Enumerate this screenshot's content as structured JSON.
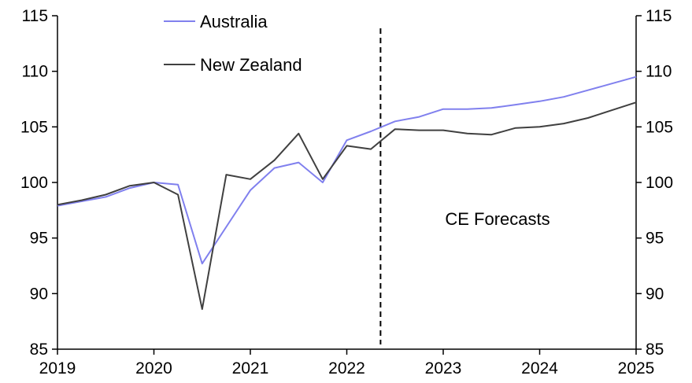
{
  "chart_data": {
    "type": "line",
    "x_start": 2019,
    "x_end": 2025,
    "x_ticks": [
      "2019",
      "2020",
      "2021",
      "2022",
      "2023",
      "2024",
      "2025"
    ],
    "y_left_ticks": [
      "85",
      "90",
      "95",
      "100",
      "105",
      "110",
      "115"
    ],
    "y_right_ticks": [
      "85",
      "90",
      "95",
      "100",
      "105",
      "110",
      "115"
    ],
    "ylim": [
      85,
      115
    ],
    "grid": false,
    "legend_position": "top-left",
    "forecast_line_x": 2022.35,
    "annotation": "CE Forecasts",
    "series": [
      {
        "name": "Australia",
        "color": "#8080ee",
        "x": [
          2019.0,
          2019.25,
          2019.5,
          2019.75,
          2020.0,
          2020.25,
          2020.5,
          2020.75,
          2021.0,
          2021.25,
          2021.5,
          2021.75,
          2022.0,
          2022.25,
          2022.5,
          2022.75,
          2023.0,
          2023.25,
          2023.5,
          2023.75,
          2024.0,
          2024.25,
          2024.5,
          2024.75,
          2025.0
        ],
        "values": [
          97.9,
          98.3,
          98.7,
          99.5,
          100.0,
          99.8,
          92.7,
          96.0,
          99.3,
          101.3,
          101.8,
          100.0,
          103.8,
          104.6,
          105.5,
          105.9,
          106.6,
          106.6,
          106.7,
          107.0,
          107.3,
          107.7,
          108.3,
          108.9,
          109.5
        ]
      },
      {
        "name": "New Zealand",
        "color": "#404040",
        "x": [
          2019.0,
          2019.25,
          2019.5,
          2019.75,
          2020.0,
          2020.25,
          2020.5,
          2020.75,
          2021.0,
          2021.25,
          2021.5,
          2021.75,
          2022.0,
          2022.25,
          2022.5,
          2022.75,
          2023.0,
          2023.25,
          2023.5,
          2023.75,
          2024.0,
          2024.25,
          2024.5,
          2024.75,
          2025.0
        ],
        "values": [
          98.0,
          98.4,
          98.9,
          99.7,
          100.0,
          98.9,
          88.6,
          100.7,
          100.3,
          102.0,
          104.4,
          100.3,
          103.3,
          103.0,
          104.8,
          104.7,
          104.7,
          104.4,
          104.3,
          104.9,
          105.0,
          105.3,
          105.8,
          106.5,
          107.2
        ]
      }
    ]
  }
}
